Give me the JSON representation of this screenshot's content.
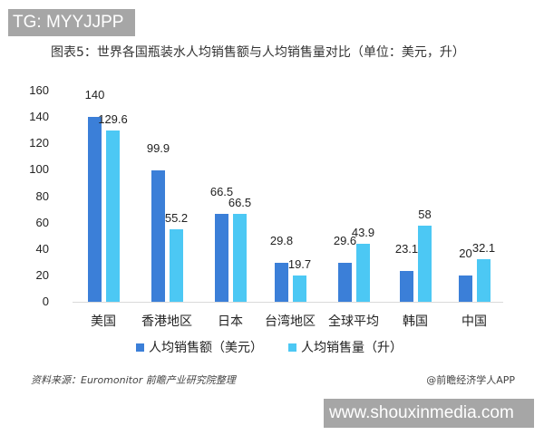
{
  "watermark_top": "TG: MYYJJPP",
  "watermark_bottom": "www.shouxinmedia.com",
  "footer": {
    "source": "资料来源：Euromonitor 前瞻产业研究院整理",
    "credit": "@前瞻经济学人APP"
  },
  "colors": {
    "series0": "#3b7fd8",
    "series1": "#4cc8f4"
  },
  "chart_data": {
    "type": "bar",
    "title": "图表5：世界各国瓶装水人均销售额与人均销售量对比（单位：美元，升）",
    "categories": [
      "美国",
      "香港地区",
      "日本",
      "台湾地区",
      "全球平均",
      "韩国",
      "中国"
    ],
    "series": [
      {
        "name": "人均销售额（美元）",
        "values": [
          140,
          99.9,
          66.5,
          29.8,
          29.6,
          23.1,
          20
        ]
      },
      {
        "name": "人均销售量（升）",
        "values": [
          129.6,
          55.2,
          66.5,
          19.7,
          43.9,
          58,
          32.1
        ]
      }
    ],
    "xlabel": "",
    "ylabel": "",
    "ylim": [
      0,
      160
    ],
    "yticks": [
      "0",
      "20",
      "40",
      "60",
      "80",
      "100",
      "120",
      "140",
      "160"
    ],
    "grid": false,
    "legend_position": "bottom"
  }
}
